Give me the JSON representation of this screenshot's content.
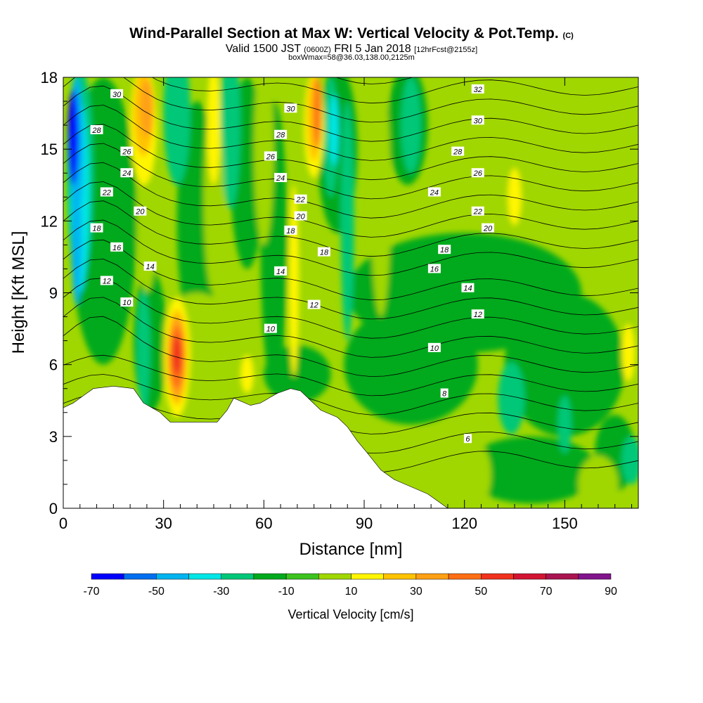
{
  "chart_data": {
    "type": "heatmap",
    "title": "Wind-Parallel Section at Max W: Vertical Velocity & Pot.Temp.",
    "title_unit": "(C)",
    "subtitle_main": "Valid 1500 JST",
    "subtitle_utc": "(0600Z)",
    "subtitle_date": "FRI 5 Jan 2018",
    "subtitle_fcst": "[12hrFcst@2155z]",
    "subtitle2": "boxWmax=58@36.03,138.00,2125m",
    "xlabel": "Distance [nm]",
    "ylabel": "Height [Kft MSL]",
    "xlim": [
      0,
      172
    ],
    "ylim": [
      0,
      18
    ],
    "x_ticks": [
      "0",
      "30",
      "60",
      "90",
      "120",
      "150"
    ],
    "y_ticks": [
      "0",
      "3",
      "6",
      "9",
      "12",
      "15",
      "18"
    ],
    "colorbar": {
      "label": "Vertical Velocity [cm/s]",
      "tick_labels": [
        "-70",
        "-50",
        "-30",
        "-10",
        "10",
        "30",
        "50",
        "70",
        "90"
      ],
      "levels": [
        -70,
        -60,
        -50,
        -40,
        -30,
        -20,
        -10,
        0,
        10,
        20,
        30,
        40,
        50,
        60,
        70,
        80,
        90
      ],
      "colors": [
        "#0000ff",
        "#0070f0",
        "#00b4f0",
        "#00e6e6",
        "#00c878",
        "#00aa1e",
        "#3cc31e",
        "#a0d700",
        "#fff500",
        "#ffc300",
        "#ffa014",
        "#ff6e14",
        "#f0321e",
        "#d21432",
        "#aa1450",
        "#82148c",
        "#641e96"
      ]
    },
    "features": [
      {
        "name": "downdraft",
        "x": 3,
        "y": 14,
        "w": -70
      },
      {
        "name": "downdraft",
        "x": 5,
        "y": 11,
        "w": -40
      },
      {
        "name": "updraft",
        "x": 24,
        "y": 16,
        "w": 35
      },
      {
        "name": "updraft",
        "x": 34,
        "y": 6.3,
        "w": 58
      },
      {
        "name": "updraft",
        "x": 75,
        "y": 16,
        "w": 45
      },
      {
        "name": "downdraft",
        "x": 81,
        "y": 15,
        "w": -30
      },
      {
        "name": "updraft",
        "x": 135,
        "y": 13,
        "w": 15
      },
      {
        "name": "updraft",
        "x": 170,
        "y": 6.5,
        "w": 15
      },
      {
        "name": "downdraft",
        "x": 134,
        "y": 4.6,
        "w": -15
      },
      {
        "name": "downdraft",
        "x": 104,
        "y": 16,
        "w": -15
      }
    ],
    "theta_contours": {
      "labels": [
        {
          "text": "30",
          "x": 16,
          "y": 17.3
        },
        {
          "text": "28",
          "x": 10,
          "y": 15.8
        },
        {
          "text": "26",
          "x": 19,
          "y": 14.9
        },
        {
          "text": "24",
          "x": 19,
          "y": 14.0
        },
        {
          "text": "22",
          "x": 13,
          "y": 13.2
        },
        {
          "text": "20",
          "x": 23,
          "y": 12.4
        },
        {
          "text": "18",
          "x": 10,
          "y": 11.7
        },
        {
          "text": "16",
          "x": 16,
          "y": 10.9
        },
        {
          "text": "14",
          "x": 26,
          "y": 10.1
        },
        {
          "text": "12",
          "x": 13,
          "y": 9.5
        },
        {
          "text": "10",
          "x": 19,
          "y": 8.6
        },
        {
          "text": "30",
          "x": 68,
          "y": 16.7
        },
        {
          "text": "28",
          "x": 65,
          "y": 15.6
        },
        {
          "text": "26",
          "x": 62,
          "y": 14.7
        },
        {
          "text": "24",
          "x": 65,
          "y": 13.8
        },
        {
          "text": "22",
          "x": 71,
          "y": 12.9
        },
        {
          "text": "20",
          "x": 71,
          "y": 12.2
        },
        {
          "text": "18",
          "x": 68,
          "y": 11.6
        },
        {
          "text": "18",
          "x": 78,
          "y": 10.7
        },
        {
          "text": "14",
          "x": 65,
          "y": 9.9
        },
        {
          "text": "12",
          "x": 75,
          "y": 8.5
        },
        {
          "text": "10",
          "x": 62,
          "y": 7.5
        },
        {
          "text": "32",
          "x": 124,
          "y": 17.5
        },
        {
          "text": "30",
          "x": 124,
          "y": 16.2
        },
        {
          "text": "28",
          "x": 118,
          "y": 14.9
        },
        {
          "text": "26",
          "x": 124,
          "y": 14.0
        },
        {
          "text": "24",
          "x": 111,
          "y": 13.2
        },
        {
          "text": "22",
          "x": 124,
          "y": 12.4
        },
        {
          "text": "20",
          "x": 127,
          "y": 11.7
        },
        {
          "text": "18",
          "x": 114,
          "y": 10.8
        },
        {
          "text": "16",
          "x": 111,
          "y": 10.0
        },
        {
          "text": "14",
          "x": 121,
          "y": 9.2
        },
        {
          "text": "12",
          "x": 124,
          "y": 8.1
        },
        {
          "text": "10",
          "x": 111,
          "y": 6.7
        },
        {
          "text": "8",
          "x": 114,
          "y": 4.8
        },
        {
          "text": "6",
          "x": 121,
          "y": 2.9
        }
      ]
    },
    "terrain_kft": [
      [
        0,
        4.2
      ],
      [
        3,
        4.4
      ],
      [
        6,
        4.7
      ],
      [
        9,
        5.0
      ],
      [
        15,
        5.1
      ],
      [
        21,
        5.0
      ],
      [
        24,
        4.4
      ],
      [
        29,
        4.0
      ],
      [
        32,
        3.6
      ],
      [
        46,
        3.6
      ],
      [
        49,
        4.1
      ],
      [
        51,
        4.6
      ],
      [
        56,
        4.3
      ],
      [
        59,
        4.4
      ],
      [
        64,
        4.8
      ],
      [
        68,
        5.0
      ],
      [
        71,
        4.9
      ],
      [
        77,
        4.1
      ],
      [
        82,
        3.8
      ],
      [
        85,
        3.4
      ],
      [
        88,
        2.8
      ],
      [
        91,
        2.3
      ],
      [
        95,
        1.6
      ],
      [
        99,
        1.2
      ],
      [
        104,
        0.9
      ],
      [
        109,
        0.6
      ],
      [
        112,
        0.3
      ],
      [
        115,
        0.0
      ]
    ]
  }
}
